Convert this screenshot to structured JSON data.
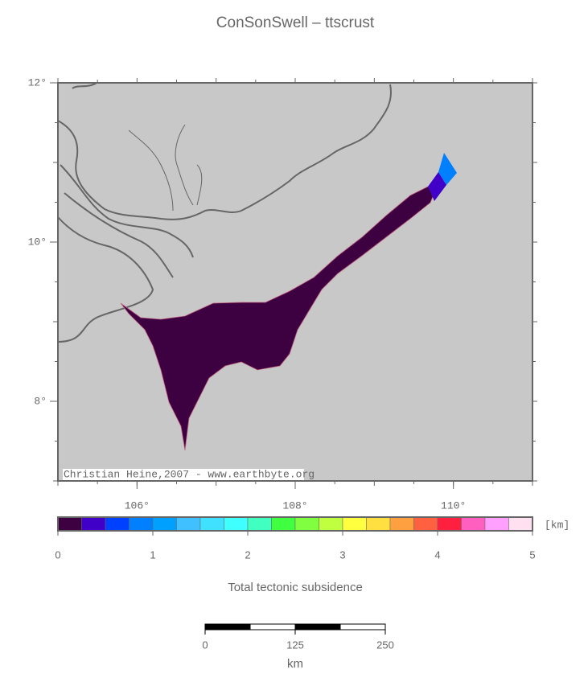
{
  "title": "ConSonSwell – ttscrust",
  "map": {
    "xlim": [
      105,
      111
    ],
    "ylim": [
      7,
      12
    ],
    "lat_ticks": [
      {
        "value": 12,
        "label": "12°"
      },
      {
        "value": 10,
        "label": "10°"
      },
      {
        "value": 8,
        "label": "8°"
      }
    ],
    "lon_ticks": [
      {
        "value": 106,
        "label": "106°"
      },
      {
        "value": 108,
        "label": "108°"
      },
      {
        "value": 110,
        "label": "110°"
      }
    ],
    "credit": "Christian Heine,2007 - www.earthbyte.org"
  },
  "colorbar": {
    "lim": [
      0,
      5
    ],
    "ticks": [
      0,
      1,
      2,
      3,
      4,
      5
    ],
    "unit": "[km]",
    "label": "Total tectonic subsidence",
    "colors": [
      "#3d0040",
      "#4000c8",
      "#0040ff",
      "#0080ff",
      "#00a0ff",
      "#40c0ff",
      "#40e0ff",
      "#40ffff",
      "#40ffc0",
      "#40ff40",
      "#80ff40",
      "#c0ff40",
      "#ffff40",
      "#ffe040",
      "#ffa040",
      "#ff6040",
      "#ff2040",
      "#ff60c0",
      "#ffa0ff",
      "#ffe0f0"
    ]
  },
  "scalebar": {
    "lim": [
      0,
      250
    ],
    "ticks": [
      0,
      125,
      250
    ],
    "unit": "km"
  }
}
